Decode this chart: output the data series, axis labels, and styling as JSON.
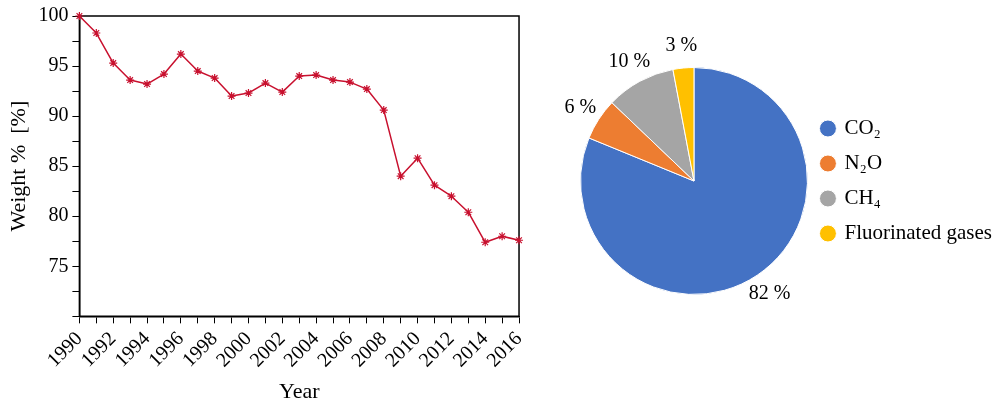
{
  "chart_data": [
    {
      "type": "line",
      "xlabel": "Year",
      "ylabel": "Weight %  [%]",
      "x": [
        1990,
        1991,
        1992,
        1993,
        1994,
        1995,
        1996,
        1997,
        1998,
        1999,
        2000,
        2001,
        2002,
        2003,
        2004,
        2005,
        2006,
        2007,
        2008,
        2009,
        2010,
        2011,
        2012,
        2013,
        2014,
        2015,
        2016
      ],
      "series": [
        {
          "color": "#c8102e",
          "values": [
            100,
            98.3,
            95.3,
            93.6,
            93.2,
            94.2,
            96.2,
            94.5,
            93.8,
            92.0,
            92.3,
            93.3,
            92.4,
            94.0,
            94.1,
            93.6,
            93.4,
            92.7,
            90.6,
            84.0,
            85.8,
            83.1,
            82.0,
            80.4,
            77.4,
            78.0,
            77.6
          ]
        }
      ],
      "xlim": [
        1990,
        2016
      ],
      "xticks": [
        1990,
        {
          "value": 1991,
          "label": null
        },
        1992,
        {
          "value": 1993,
          "label": null
        },
        1994,
        {
          "value": 1995,
          "label": null
        },
        1996,
        {
          "value": 1997,
          "label": null
        },
        1998,
        {
          "value": 1999,
          "label": null
        },
        2000,
        {
          "value": 2001,
          "label": null
        },
        2002,
        {
          "value": 2003,
          "label": null
        },
        2004,
        {
          "value": 2005,
          "label": null
        },
        2006,
        {
          "value": 2007,
          "label": null
        },
        2008,
        {
          "value": 2009,
          "label": null
        },
        2010,
        {
          "value": 2011,
          "label": null
        },
        2012,
        {
          "value": 2013,
          "label": null
        },
        2014,
        {
          "value": 2015,
          "label": null
        },
        2016
      ],
      "ylim": [
        70,
        100
      ],
      "yticks": [
        {
          "value": 70,
          "label": null
        },
        {
          "value": 72.5,
          "label": null
        },
        75,
        {
          "value": 77.5,
          "label": null
        },
        80,
        {
          "value": 82.5,
          "label": null
        },
        85,
        {
          "value": 87.5,
          "label": null
        },
        90,
        {
          "value": 92.5,
          "label": null
        },
        95,
        {
          "value": 97.5,
          "label": null
        },
        100
      ],
      "marker": "cross",
      "line_style": "solid",
      "grid": false,
      "legend": false
    },
    {
      "type": "pie",
      "categories": [
        "CO₂",
        "N₂O",
        "CH₄",
        "Fluorinated gases"
      ],
      "values": [
        82,
        6,
        10,
        3
      ],
      "colors": [
        "#4472c4",
        "#ed7d31",
        "#a5a5a5",
        "#ffc000"
      ],
      "value_labels": [
        "82 %",
        "6 %",
        "10 %",
        "3 %"
      ],
      "legend": "right"
    }
  ]
}
